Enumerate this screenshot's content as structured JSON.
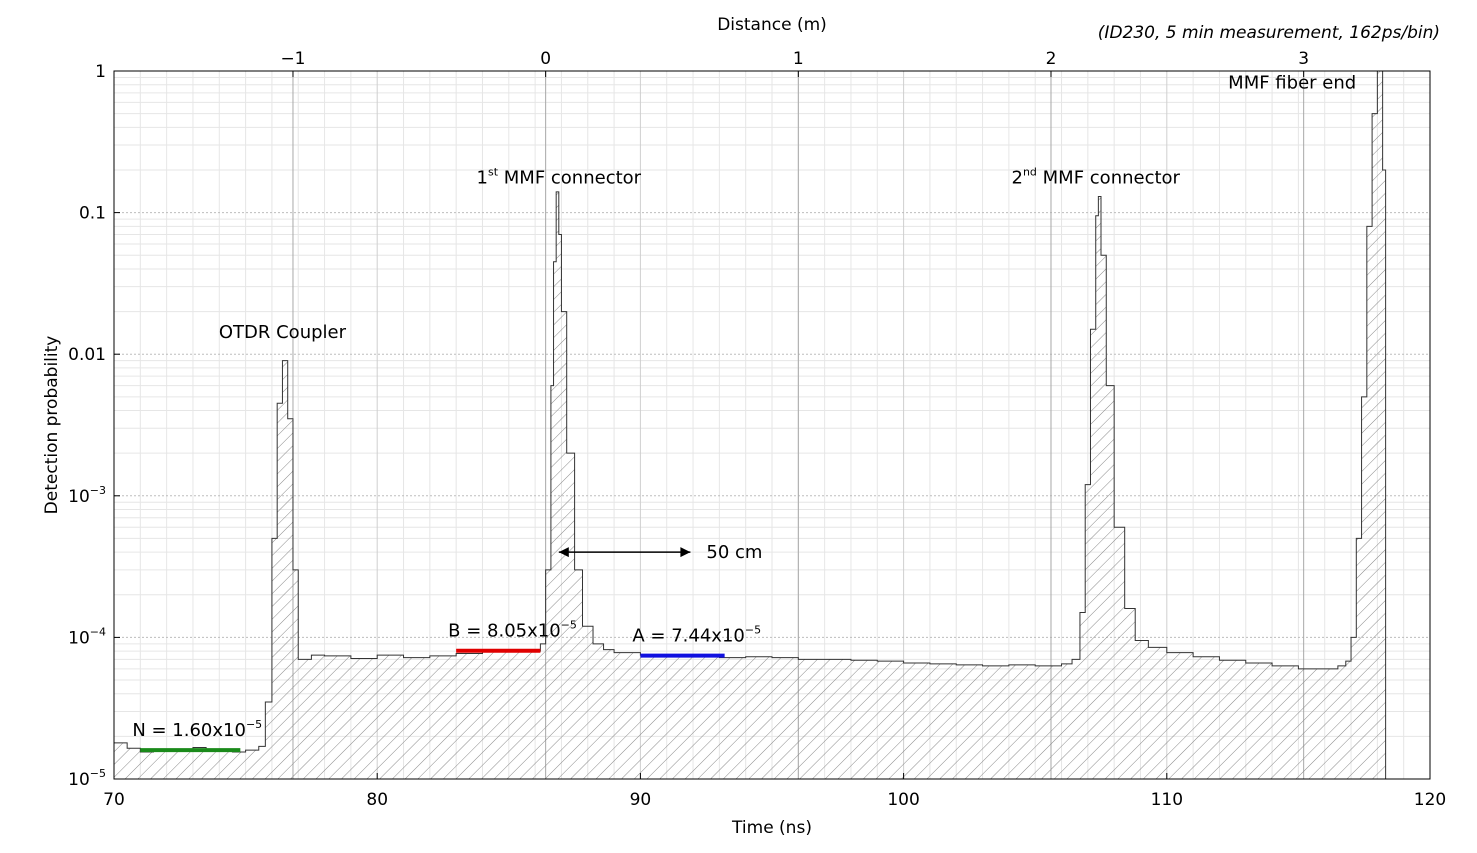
{
  "chart_data": {
    "type": "area",
    "header_note": "(ID230, 5 min measurement, 162ps/bin)",
    "xlabel": "Time (ns)",
    "ylabel": "Detection probability",
    "x2label": "Distance (m)",
    "xlim": [
      70,
      120
    ],
    "ylim": [
      1e-05,
      1
    ],
    "yscale": "log",
    "grid": true,
    "x_ticks": [
      70,
      80,
      90,
      100,
      110,
      120
    ],
    "x2_ticks": [
      {
        "label": "−1",
        "time": 76.8
      },
      {
        "label": "0",
        "time": 86.4
      },
      {
        "label": "1",
        "time": 96.0
      },
      {
        "label": "2",
        "time": 105.6
      },
      {
        "label": "3",
        "time": 115.2
      }
    ],
    "y_ticks": [
      {
        "value": 1,
        "base": "1",
        "sup": ""
      },
      {
        "value": 0.1,
        "base": "0.1",
        "sup": ""
      },
      {
        "value": 0.01,
        "base": "0.01",
        "sup": ""
      },
      {
        "value": 0.001,
        "base": "10",
        "sup": "−3"
      },
      {
        "value": 0.0001,
        "base": "10",
        "sup": "−4"
      },
      {
        "value": 1e-05,
        "base": "10",
        "sup": "−5"
      }
    ],
    "series": [
      {
        "style": "stairs-hatched",
        "x": [
          70,
          70.5,
          71,
          71.5,
          72,
          72.5,
          73,
          73.5,
          74,
          74.5,
          75,
          75.5,
          75.75,
          76.0,
          76.2,
          76.4,
          76.6,
          76.8,
          77.0,
          77.5,
          78,
          79,
          80,
          81,
          82,
          83,
          84,
          85,
          86,
          86.2,
          86.4,
          86.6,
          86.7,
          86.8,
          86.9,
          87.0,
          87.2,
          87.5,
          87.8,
          88.2,
          88.6,
          89,
          90,
          91,
          92,
          93,
          94,
          95,
          96,
          97,
          98,
          99,
          100,
          101,
          102,
          103,
          104,
          105,
          106,
          106.4,
          106.7,
          106.9,
          107.1,
          107.3,
          107.4,
          107.5,
          107.7,
          108,
          108.4,
          108.8,
          109.3,
          110,
          111,
          112,
          113,
          114,
          115,
          116,
          116.5,
          116.8,
          117.0,
          117.2,
          117.4,
          117.6,
          117.8,
          118.0,
          118.2
        ],
        "y": [
          1.8e-05,
          1.65e-05,
          1.55e-05,
          1.62e-05,
          1.58e-05,
          1.63e-05,
          1.67e-05,
          1.58e-05,
          1.62e-05,
          1.55e-05,
          1.6e-05,
          1.7e-05,
          3.5e-05,
          0.0005,
          0.0045,
          0.009,
          0.0035,
          0.0003,
          7e-05,
          7.5e-05,
          7.4e-05,
          7.1e-05,
          7.5e-05,
          7.2e-05,
          7.4e-05,
          7.7e-05,
          8e-05,
          8.1e-05,
          8e-05,
          9e-05,
          0.0003,
          0.006,
          0.045,
          0.14,
          0.07,
          0.02,
          0.002,
          0.0003,
          0.00012,
          9e-05,
          8.2e-05,
          7.8e-05,
          7.5e-05,
          7.4e-05,
          7.3e-05,
          7.2e-05,
          7.3e-05,
          7.2e-05,
          7e-05,
          7e-05,
          6.9e-05,
          6.8e-05,
          6.6e-05,
          6.5e-05,
          6.4e-05,
          6.3e-05,
          6.4e-05,
          6.3e-05,
          6.5e-05,
          7e-05,
          0.00015,
          0.0012,
          0.015,
          0.095,
          0.13,
          0.05,
          0.006,
          0.0006,
          0.00016,
          9.5e-05,
          8.5e-05,
          7.8e-05,
          7.3e-05,
          6.9e-05,
          6.6e-05,
          6.3e-05,
          6e-05,
          6e-05,
          6.3e-05,
          6.8e-05,
          0.0001,
          0.0005,
          0.005,
          0.08,
          0.5,
          1.0,
          0.2
        ]
      }
    ],
    "levels": [
      {
        "label_base": "N = 1.60x10",
        "label_sup": "−5",
        "value": 1.6e-05,
        "x_from": 71,
        "x_to": 74.8,
        "color": "#1a8a1a"
      },
      {
        "label_base": "B = 8.05x10",
        "label_sup": "−5",
        "value": 8.05e-05,
        "x_from": 83,
        "x_to": 86.2,
        "color": "#e00000"
      },
      {
        "label_base": "A = 7.44x10",
        "label_sup": "−5",
        "value": 7.44e-05,
        "x_from": 90,
        "x_to": 93.2,
        "color": "#1010e0"
      }
    ],
    "annotations": [
      {
        "text": "OTDR Coupler",
        "sup": "",
        "rest": "",
        "x": 76.4,
        "y": 0.013
      },
      {
        "pre": "1",
        "sup": "st",
        "text": " MMF connector",
        "x": 86.9,
        "y": 0.16
      },
      {
        "pre": "2",
        "sup": "nd",
        "text": " MMF connector",
        "x": 107.3,
        "y": 0.16
      },
      {
        "text": "MMF fiber end",
        "x": 117.5,
        "y": 0.75
      }
    ],
    "arrow": {
      "label": "50 cm",
      "x_from": 86.9,
      "x_to": 91.9,
      "y": 0.0004
    }
  }
}
